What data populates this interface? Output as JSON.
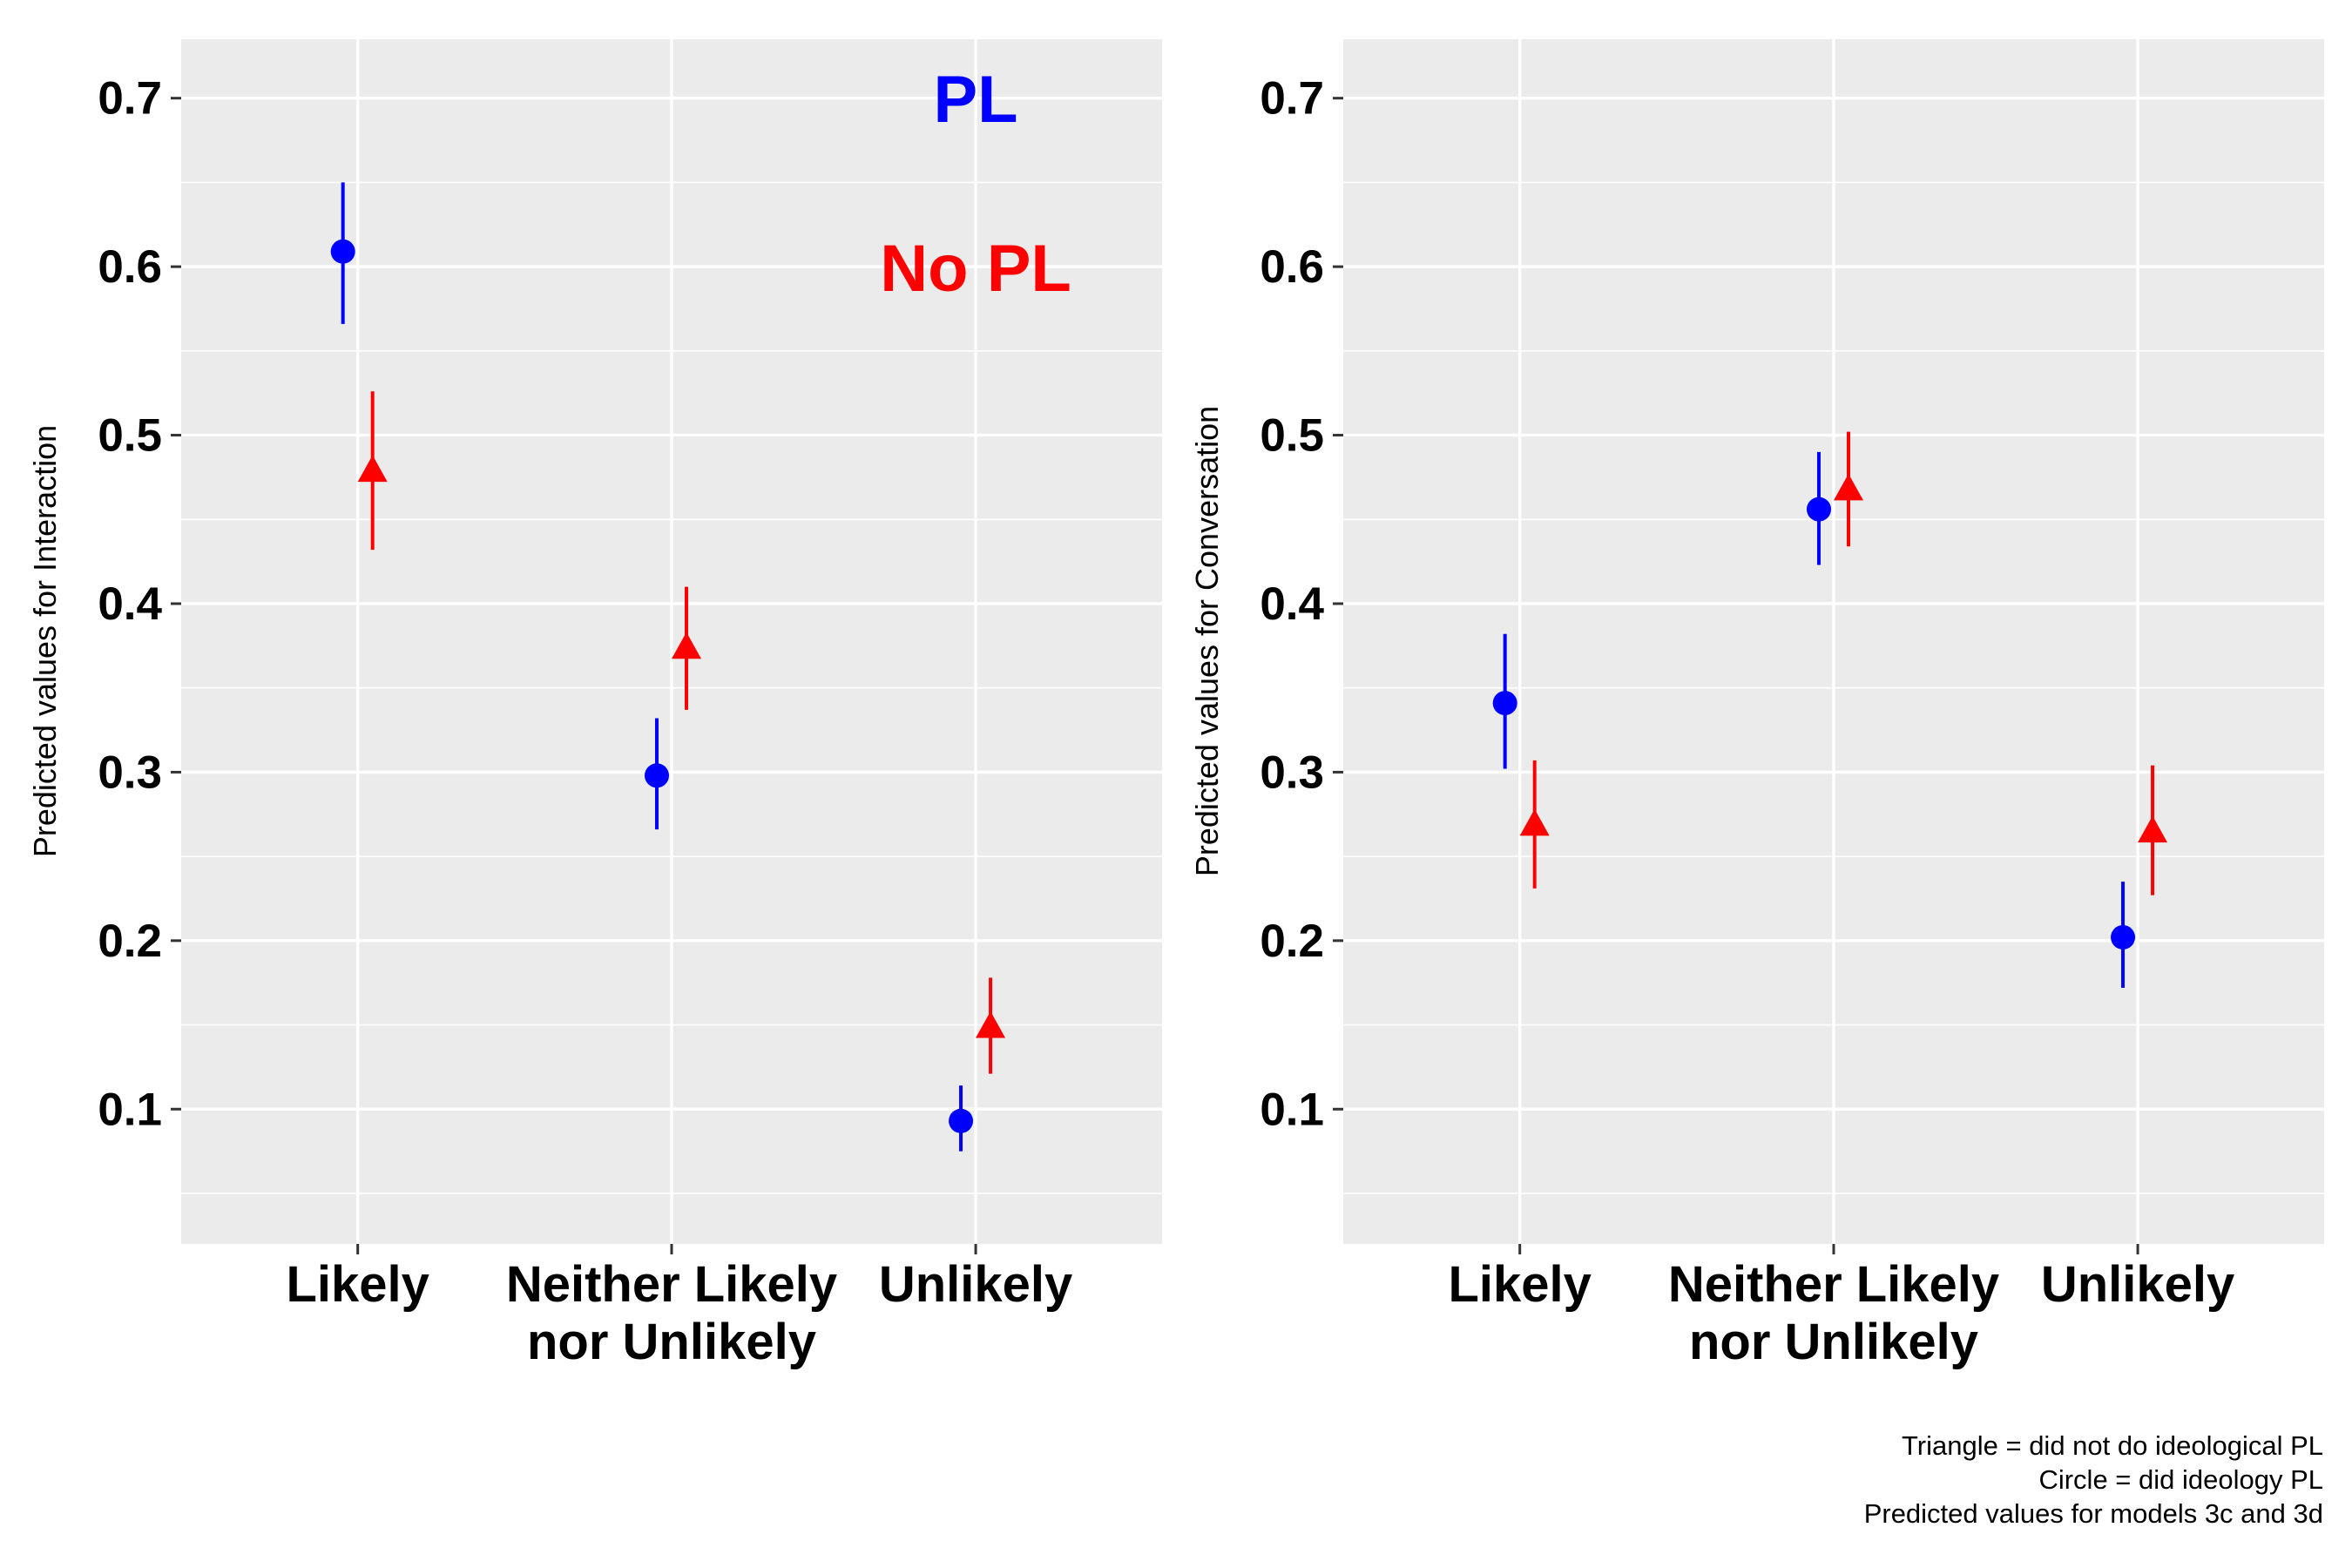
{
  "chart_data": [
    {
      "type": "scatter",
      "panel": "left",
      "ylabel": "Predicted values for Interaction",
      "xlabel": "",
      "categories": [
        "Likely",
        "Neither Likely\nnor Unlikely",
        "Unlikely"
      ],
      "ylim": [
        0.02,
        0.735
      ],
      "yticks": [
        "0.1",
        "0.2",
        "0.3",
        "0.4",
        "0.5",
        "0.6",
        "0.7"
      ],
      "grid": true,
      "annotations": [
        {
          "text": "PL",
          "color": "#0000ff"
        },
        {
          "text": "No PL",
          "color": "#ff0000"
        }
      ],
      "series": [
        {
          "marker": "circle",
          "color": "#0000ff",
          "values": [
            0.609,
            0.298,
            0.093
          ],
          "lower": [
            0.566,
            0.266,
            0.075
          ],
          "upper": [
            0.65,
            0.332,
            0.114
          ]
        },
        {
          "marker": "triangle",
          "color": "#ff0000",
          "values": [
            0.478,
            0.373,
            0.148
          ],
          "lower": [
            0.432,
            0.337,
            0.121
          ],
          "upper": [
            0.526,
            0.41,
            0.178
          ]
        }
      ]
    },
    {
      "type": "scatter",
      "panel": "right",
      "ylabel": "Predicted values for Conversation",
      "xlabel": "",
      "categories": [
        "Likely",
        "Neither Likely\nnor Unlikely",
        "Unlikely"
      ],
      "ylim": [
        0.02,
        0.735
      ],
      "yticks": [
        "0.1",
        "0.2",
        "0.3",
        "0.4",
        "0.5",
        "0.6",
        "0.7"
      ],
      "grid": true,
      "annotations": [],
      "series": [
        {
          "marker": "circle",
          "color": "#0000ff",
          "values": [
            0.341,
            0.456,
            0.202
          ],
          "lower": [
            0.302,
            0.423,
            0.172
          ],
          "upper": [
            0.382,
            0.49,
            0.235
          ]
        },
        {
          "marker": "triangle",
          "color": "#ff0000",
          "values": [
            0.268,
            0.467,
            0.264
          ],
          "lower": [
            0.231,
            0.434,
            0.227
          ],
          "upper": [
            0.307,
            0.502,
            0.304
          ]
        }
      ]
    }
  ],
  "caption": {
    "line1": "Triangle = did not do ideological PL",
    "line2": "Circle = did ideology PL",
    "line3": "Predicted values for models 3c and 3d"
  }
}
